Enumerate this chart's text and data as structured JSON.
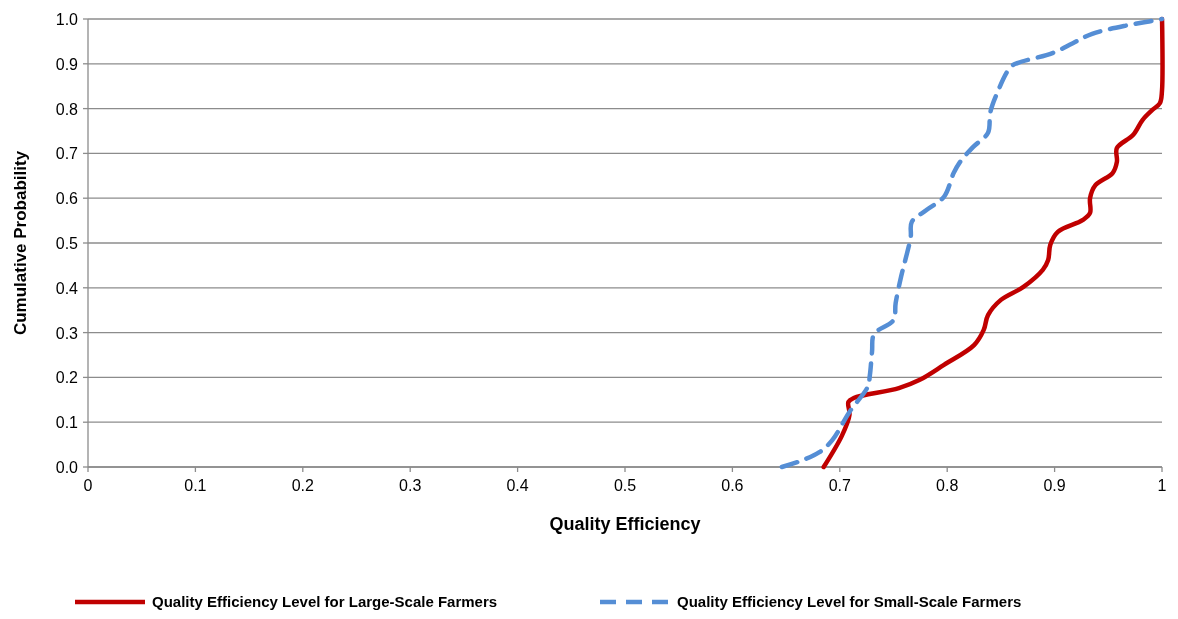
{
  "chart_data": {
    "type": "line",
    "xlabel": "Quality Efficiency",
    "ylabel": "Cumulative Probability",
    "xlim": [
      0,
      1
    ],
    "xticks": [
      0,
      0.1,
      0.2,
      0.3,
      0.4,
      0.5,
      0.6,
      0.7,
      0.8,
      0.9,
      1
    ],
    "ylim": [
      0,
      1
    ],
    "yticks": [
      {
        "value": 0,
        "label": "0.0"
      },
      0.1,
      0.2,
      0.3,
      0.4,
      0.5,
      0.6,
      0.7,
      0.8,
      0.9,
      {
        "value": 1,
        "label": "1.0"
      }
    ],
    "grid": "y",
    "legend": "bottom",
    "series": [
      {
        "name": "Quality Efficiency Level for Large-Scale Farmers",
        "color": "#c00000",
        "line_style": "solid",
        "x": [
          0.685,
          0.702,
          0.709,
          0.708,
          0.713,
          0.755,
          0.774,
          0.797,
          0.825,
          0.834,
          0.838,
          0.85,
          0.871,
          0.889,
          0.894,
          0.896,
          0.903,
          0.926,
          0.933,
          0.933,
          0.938,
          0.954,
          0.958,
          0.958,
          0.973,
          0.982,
          0.991,
          0.998,
          1,
          1
        ],
        "values": [
          0,
          0.07,
          0.116,
          0.145,
          0.154,
          0.176,
          0.194,
          0.228,
          0.272,
          0.306,
          0.339,
          0.373,
          0.402,
          0.44,
          0.462,
          0.496,
          0.525,
          0.551,
          0.567,
          0.6,
          0.629,
          0.656,
          0.681,
          0.712,
          0.741,
          0.775,
          0.797,
          0.812,
          0.84,
          1
        ]
      },
      {
        "name": "Quality Efficiency Level for Small-Scale Farmers",
        "color": "#558ed5",
        "line_style": "dashed",
        "x": [
          0.646,
          0.663,
          0.681,
          0.693,
          0.709,
          0.726,
          0.728,
          0.73,
          0.732,
          0.75,
          0.752,
          0.757,
          0.761,
          0.766,
          0.767,
          0.781,
          0.797,
          0.806,
          0.812,
          0.824,
          0.838,
          0.84,
          0.845,
          0.859,
          0.866,
          0.898,
          0.917,
          0.935,
          0.97,
          0.991,
          1
        ],
        "values": [
          0,
          0.013,
          0.033,
          0.06,
          0.123,
          0.179,
          0.205,
          0.257,
          0.297,
          0.328,
          0.366,
          0.424,
          0.462,
          0.513,
          0.547,
          0.574,
          0.603,
          0.656,
          0.681,
          0.714,
          0.746,
          0.79,
          0.826,
          0.893,
          0.902,
          0.924,
          0.946,
          0.967,
          0.987,
          0.996,
          1
        ]
      }
    ]
  }
}
